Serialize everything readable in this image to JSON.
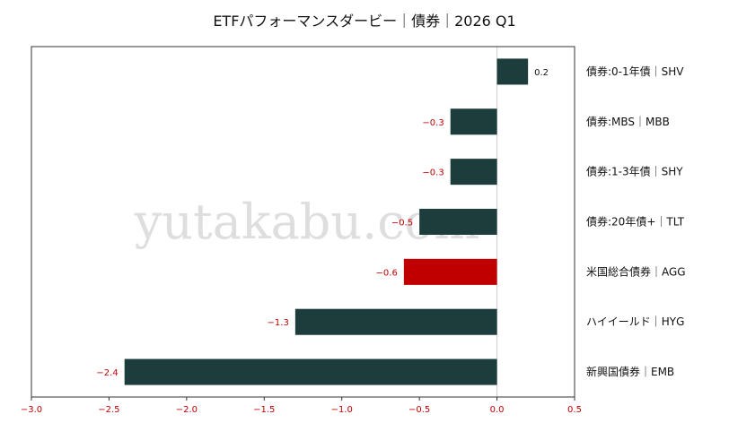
{
  "chart_data": {
    "type": "bar",
    "orientation": "horizontal",
    "title": "ETFパフォーマンスダービー｜債券｜2026 Q1",
    "watermark": "yutakabu.com",
    "categories": [
      "債券:0-1年債｜SHV",
      "債券:MBS｜MBB",
      "債券:1-3年債｜SHY",
      "債券:20年債+｜TLT",
      "米国総合債券｜AGG",
      "ハイイールド｜HYG",
      "新興国債券｜EMB"
    ],
    "values": [
      0.2,
      -0.3,
      -0.3,
      -0.5,
      -0.6,
      -1.3,
      -2.4
    ],
    "value_labels": [
      "0.2",
      "−0.3",
      "−0.3",
      "−0.5",
      "−0.6",
      "−1.3",
      "−2.4"
    ],
    "highlight_index": 4,
    "xlim": [
      -3.0,
      0.5
    ],
    "xticks": [
      -3.0,
      -2.5,
      -2.0,
      -1.5,
      -1.0,
      -0.5,
      0.0,
      0.5
    ],
    "xtick_labels": [
      "−3.0",
      "−2.5",
      "−2.0",
      "−1.5",
      "−1.0",
      "−0.5",
      "0.0",
      "0.5"
    ],
    "xlabel": "",
    "ylabel": "",
    "grid": false,
    "colors": {
      "bar": "#1c3d3c",
      "highlight": "#c00000",
      "negative_label": "#c00000",
      "positive_label": "#111111",
      "tick_label": "#c00000",
      "zero_line": "#cccccc",
      "frame": "#333333",
      "watermark": "#dedede"
    }
  }
}
